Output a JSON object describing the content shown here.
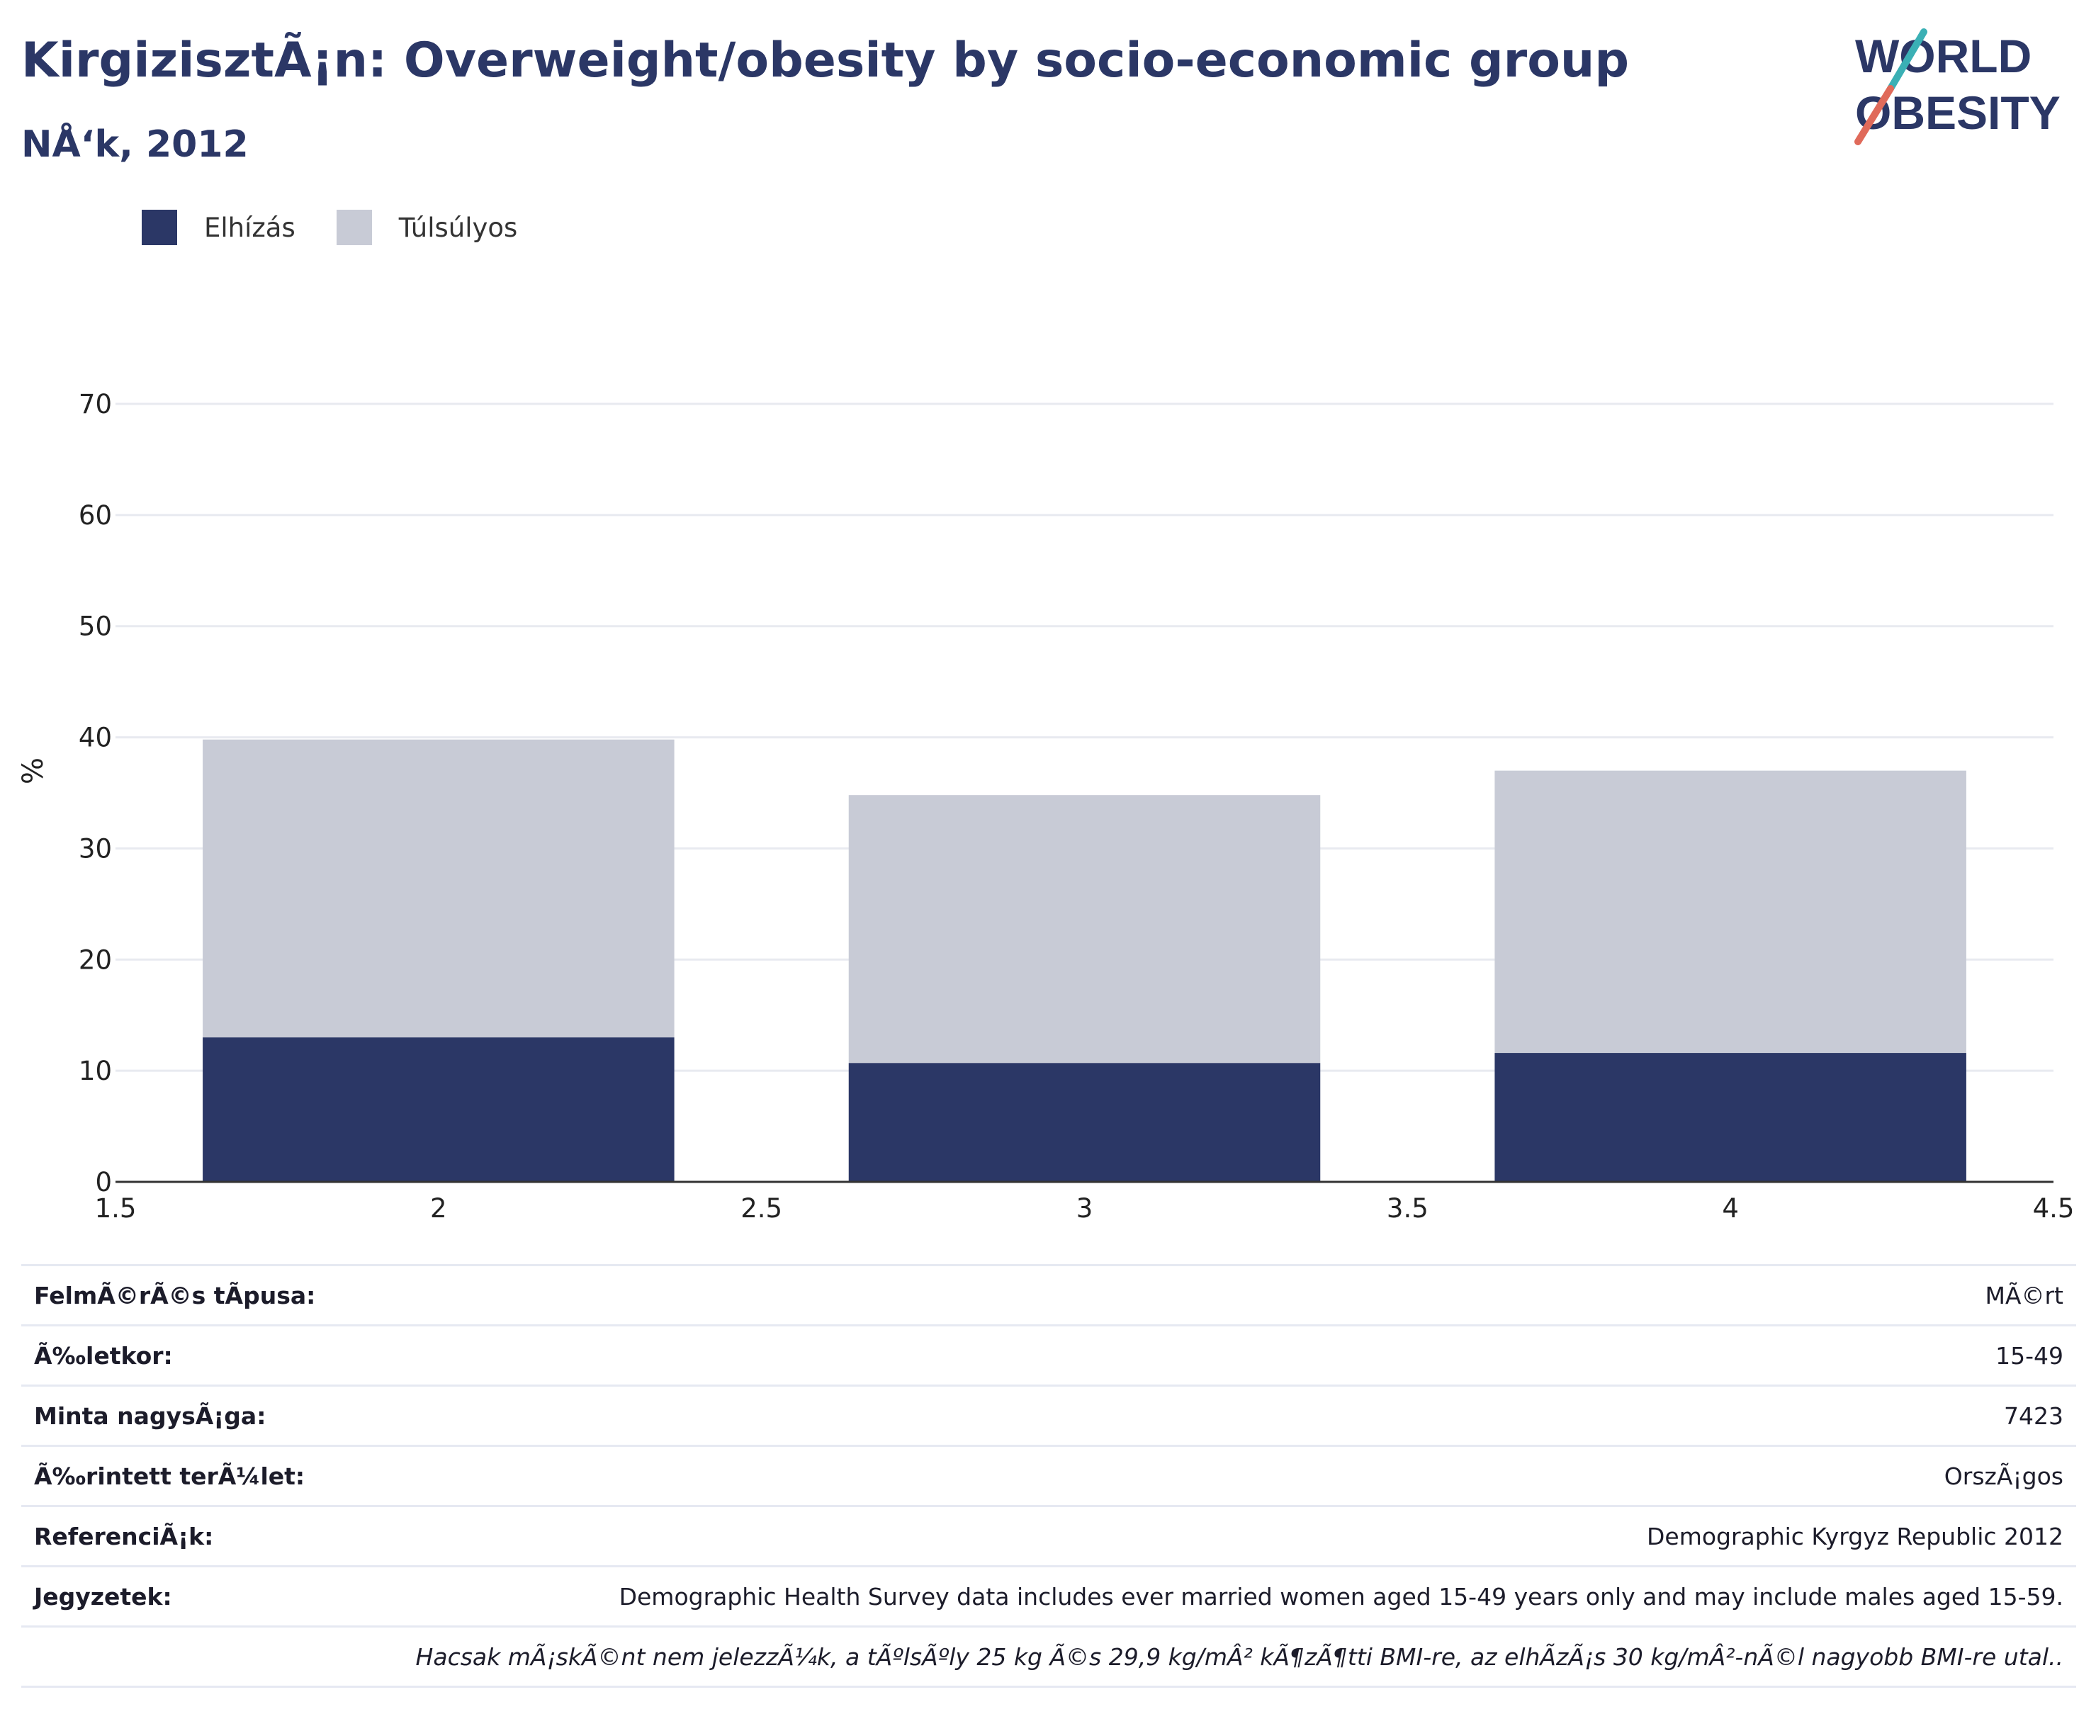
{
  "header": {
    "title": "KirgizisztÃ¡n: Overweight/obesity by socio-economic group",
    "subtitle": "NÅ‘k, 2012"
  },
  "logo": {
    "line1": "WORLD",
    "line2": "OBESITY",
    "accent_colors": [
      "#3bb0b5",
      "#e06a5a"
    ],
    "text_color": "#2b3766"
  },
  "legend": {
    "items": [
      {
        "label": "Elhízás",
        "color": "#2b3766"
      },
      {
        "label": "Túlsúlyos",
        "color": "#c8cbd6"
      }
    ]
  },
  "chart_data": {
    "type": "bar",
    "stacked": true,
    "x": [
      2,
      3,
      4
    ],
    "series": [
      {
        "name": "Elhízás",
        "values": [
          13.0,
          10.7,
          11.6
        ],
        "color": "#2b3766"
      },
      {
        "name": "Túlsúlyos",
        "values": [
          26.8,
          24.1,
          25.4
        ],
        "color": "#c8cbd6"
      }
    ],
    "ylabel": "%",
    "ylim": [
      0,
      70
    ],
    "xlim": [
      1.5,
      4.5
    ],
    "yticks": [
      0,
      10,
      20,
      30,
      40,
      50,
      60,
      70
    ],
    "xticks": [
      "1.5",
      "2",
      "2.5",
      "3",
      "3.5",
      "4",
      "4.5"
    ],
    "xtick_values": [
      1.5,
      2,
      2.5,
      3,
      3.5,
      4,
      4.5
    ],
    "grid": true,
    "legend_position": "top-left"
  },
  "info": {
    "rows": [
      {
        "label": "FelmÃ©rÃ©s tÃpusa:",
        "value": "MÃ©rt"
      },
      {
        "label": "Ã‰letkor:",
        "value": "15-49"
      },
      {
        "label": "Minta nagysÃ¡ga:",
        "value": "7423"
      },
      {
        "label": "Ã‰rintett terÃ¼let:",
        "value": "OrszÃ¡gos"
      },
      {
        "label": "ReferenciÃ¡k:",
        "value": "Demographic Kyrgyz Republic 2012"
      },
      {
        "label": "Jegyzetek:",
        "value": "Demographic Health Survey data includes ever married women aged 15-49 years only and may include males aged 15-59."
      }
    ],
    "footnote": "Hacsak mÃ¡skÃ©nt nem jelezzÃ¼k, a tÃºlsÃºly 25 kg Ã©s 29,9 kg/mÂ² kÃ¶zÃ¶tti BMI-re, az elhÃ­zÃ¡s 30 kg/mÂ²-nÃ©l nagyobb BMI-re utal.."
  }
}
